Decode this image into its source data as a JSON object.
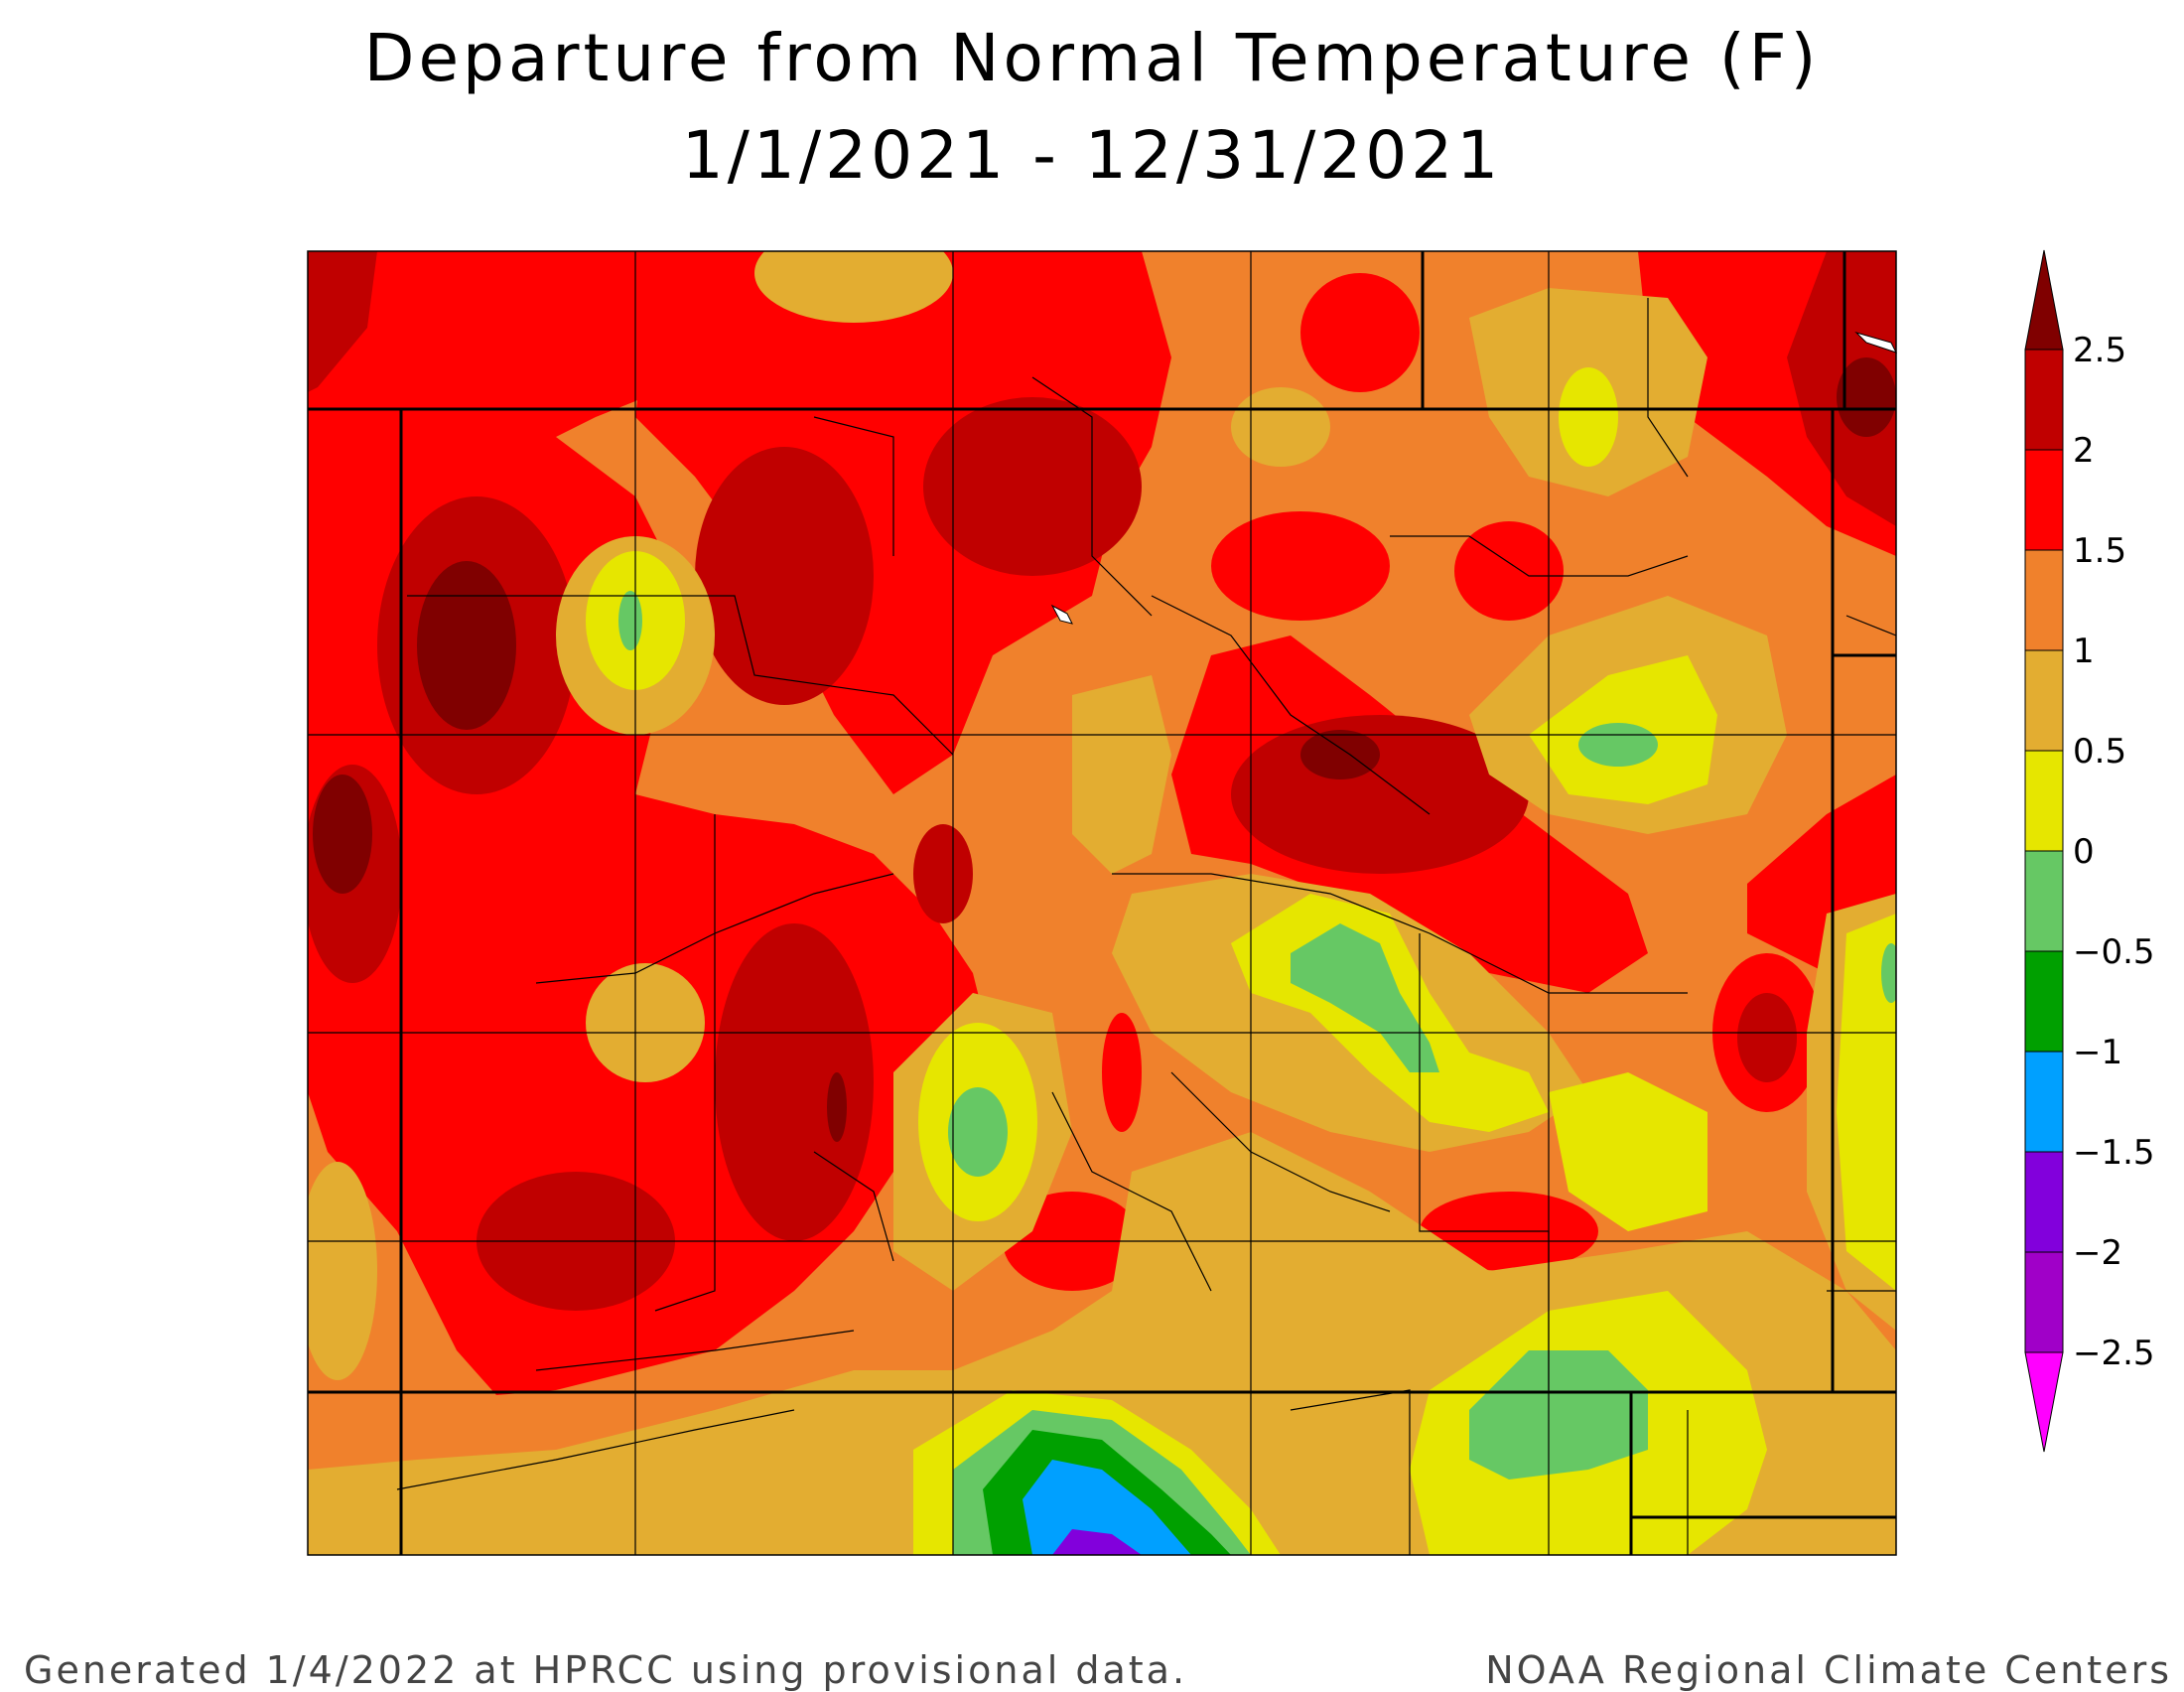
{
  "title": {
    "line1": "Departure from Normal Temperature (F)",
    "line2": "1/1/2021 - 12/31/2021"
  },
  "legend": {
    "levels": [
      {
        "label": "2.5",
        "value": 2.5,
        "color": "#c00000"
      },
      {
        "label": "2",
        "value": 2,
        "color": "#ff0000"
      },
      {
        "label": "1.5",
        "value": 1.5,
        "color": "#f0812c"
      },
      {
        "label": "1",
        "value": 1,
        "color": "#e3ad31"
      },
      {
        "label": "0.5",
        "value": 0.5,
        "color": "#e6e600"
      },
      {
        "label": "0",
        "value": 0,
        "color": "#66c864"
      },
      {
        "label": "−0.5",
        "value": -0.5,
        "color": "#00a000"
      },
      {
        "label": "−1",
        "value": -1,
        "color": "#00a0ff"
      },
      {
        "label": "−1.5",
        "value": -1.5,
        "color": "#8200dc"
      },
      {
        "label": "−2",
        "value": -2,
        "color": "#a000c8"
      },
      {
        "label": "−2.5",
        "value": -2.5,
        "color": "#ff00ff"
      }
    ],
    "top_arrow_color": "#800000",
    "bottom_arrow_color": "#ff00ff"
  },
  "colors": {
    "darkest": "#800000",
    "dark_red": "#c00000",
    "red": "#ff0000",
    "orange": "#f0812c",
    "light_orange": "#e3ad31",
    "yellow": "#e6e600",
    "light_green": "#66c864",
    "green": "#00a000",
    "blue": "#00a0ff",
    "purple": "#8200dc"
  },
  "footer": {
    "left": "Generated 1/4/2022 at HPRCC using provisional data.",
    "right": "NOAA Regional Climate Centers"
  }
}
